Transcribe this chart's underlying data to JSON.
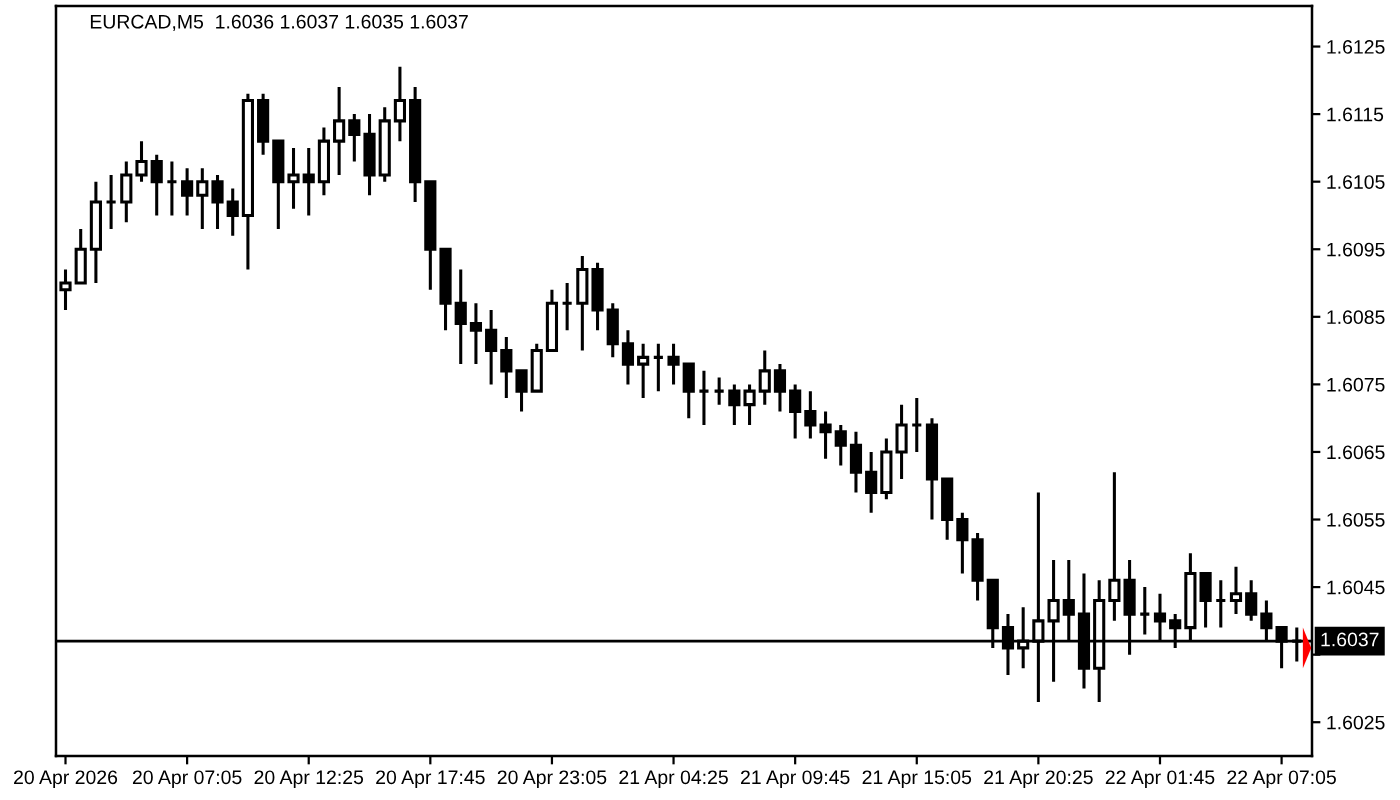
{
  "chart_data": {
    "type": "candlestick",
    "title": "EURCAD,M5  1.6036 1.6037 1.6035 1.6037",
    "color": "#000000",
    "x": [
      "2026-04-20T01:45",
      "2026-04-20T02:25",
      "2026-04-20T03:05",
      "2026-04-20T03:45",
      "2026-04-20T04:25",
      "2026-04-20T05:05",
      "2026-04-20T05:45",
      "2026-04-20T06:25",
      "2026-04-20T07:05",
      "2026-04-20T07:45",
      "2026-04-20T08:25",
      "2026-04-20T09:05",
      "2026-04-20T09:45",
      "2026-04-20T10:25",
      "2026-04-20T11:05",
      "2026-04-20T11:45",
      "2026-04-20T12:25",
      "2026-04-20T13:05",
      "2026-04-20T13:45",
      "2026-04-20T14:25",
      "2026-04-20T15:05",
      "2026-04-20T15:45",
      "2026-04-20T16:25",
      "2026-04-20T17:05",
      "2026-04-20T17:45",
      "2026-04-20T18:25",
      "2026-04-20T19:05",
      "2026-04-20T19:45",
      "2026-04-20T20:25",
      "2026-04-20T21:05",
      "2026-04-20T21:45",
      "2026-04-20T22:25",
      "2026-04-20T23:05",
      "2026-04-20T23:45",
      "2026-04-21T00:25",
      "2026-04-21T01:05",
      "2026-04-21T01:45",
      "2026-04-21T02:25",
      "2026-04-21T03:05",
      "2026-04-21T03:45",
      "2026-04-21T04:25",
      "2026-04-21T05:05",
      "2026-04-21T05:45",
      "2026-04-21T06:25",
      "2026-04-21T07:05",
      "2026-04-21T07:45",
      "2026-04-21T08:25",
      "2026-04-21T09:05",
      "2026-04-21T09:45",
      "2026-04-21T10:25",
      "2026-04-21T11:05",
      "2026-04-21T11:45",
      "2026-04-21T12:25",
      "2026-04-21T13:05",
      "2026-04-21T13:45",
      "2026-04-21T14:25",
      "2026-04-21T15:05",
      "2026-04-21T15:45",
      "2026-04-21T16:25",
      "2026-04-21T17:05",
      "2026-04-21T17:45",
      "2026-04-21T18:25",
      "2026-04-21T19:05",
      "2026-04-21T19:45",
      "2026-04-21T20:25",
      "2026-04-21T21:05",
      "2026-04-21T21:45",
      "2026-04-21T22:25",
      "2026-04-21T23:05",
      "2026-04-21T23:45",
      "2026-04-22T00:25",
      "2026-04-22T01:05",
      "2026-04-22T01:45",
      "2026-04-22T02:25",
      "2026-04-22T03:05",
      "2026-04-22T03:45",
      "2026-04-22T04:25",
      "2026-04-22T05:05",
      "2026-04-22T05:45",
      "2026-04-22T06:25",
      "2026-04-22T07:05",
      "2026-04-22T07:45"
    ],
    "ohlc": [
      [
        1.6089,
        1.6092,
        1.6086,
        1.609
      ],
      [
        1.609,
        1.6098,
        1.609,
        1.6095
      ],
      [
        1.6095,
        1.6105,
        1.609,
        1.6102
      ],
      [
        1.6102,
        1.6106,
        1.6098,
        1.6102
      ],
      [
        1.6102,
        1.6108,
        1.6099,
        1.6106
      ],
      [
        1.6106,
        1.6111,
        1.6105,
        1.6108
      ],
      [
        1.6108,
        1.6109,
        1.61,
        1.6105
      ],
      [
        1.6105,
        1.6108,
        1.61,
        1.6105
      ],
      [
        1.6105,
        1.6107,
        1.61,
        1.6103
      ],
      [
        1.6103,
        1.6107,
        1.6098,
        1.6105
      ],
      [
        1.6105,
        1.6106,
        1.6098,
        1.6102
      ],
      [
        1.6102,
        1.6104,
        1.6097,
        1.61
      ],
      [
        1.61,
        1.6118,
        1.6092,
        1.6117
      ],
      [
        1.6117,
        1.6118,
        1.6109,
        1.6111
      ],
      [
        1.6111,
        1.6111,
        1.6098,
        1.6105
      ],
      [
        1.6105,
        1.611,
        1.6101,
        1.6106
      ],
      [
        1.6106,
        1.611,
        1.61,
        1.6105
      ],
      [
        1.6105,
        1.6113,
        1.6103,
        1.6111
      ],
      [
        1.6111,
        1.6119,
        1.6106,
        1.6114
      ],
      [
        1.6114,
        1.6115,
        1.6108,
        1.6112
      ],
      [
        1.6112,
        1.6115,
        1.6103,
        1.6106
      ],
      [
        1.6106,
        1.6116,
        1.6105,
        1.6114
      ],
      [
        1.6114,
        1.6122,
        1.6111,
        1.6117
      ],
      [
        1.6117,
        1.6119,
        1.6102,
        1.6105
      ],
      [
        1.6105,
        1.6105,
        1.6089,
        1.6095
      ],
      [
        1.6095,
        1.6095,
        1.6083,
        1.6087
      ],
      [
        1.6087,
        1.6092,
        1.6078,
        1.6084
      ],
      [
        1.6084,
        1.6087,
        1.6078,
        1.6083
      ],
      [
        1.6083,
        1.6086,
        1.6075,
        1.608
      ],
      [
        1.608,
        1.6082,
        1.6073,
        1.6077
      ],
      [
        1.6077,
        1.6077,
        1.6071,
        1.6074
      ],
      [
        1.6074,
        1.6081,
        1.6074,
        1.608
      ],
      [
        1.608,
        1.6089,
        1.608,
        1.6087
      ],
      [
        1.6087,
        1.609,
        1.6083,
        1.6087
      ],
      [
        1.6087,
        1.6094,
        1.608,
        1.6092
      ],
      [
        1.6092,
        1.6093,
        1.6083,
        1.6086
      ],
      [
        1.6086,
        1.6087,
        1.6079,
        1.6081
      ],
      [
        1.6081,
        1.6083,
        1.6075,
        1.6078
      ],
      [
        1.6078,
        1.6081,
        1.6073,
        1.6079
      ],
      [
        1.6079,
        1.6081,
        1.6074,
        1.6079
      ],
      [
        1.6079,
        1.6081,
        1.6075,
        1.6078
      ],
      [
        1.6078,
        1.6078,
        1.607,
        1.6074
      ],
      [
        1.6074,
        1.6077,
        1.6069,
        1.6074
      ],
      [
        1.6074,
        1.6076,
        1.6072,
        1.6074
      ],
      [
        1.6074,
        1.6075,
        1.6069,
        1.6072
      ],
      [
        1.6072,
        1.6075,
        1.6069,
        1.6074
      ],
      [
        1.6074,
        1.608,
        1.6072,
        1.6077
      ],
      [
        1.6077,
        1.6078,
        1.6071,
        1.6074
      ],
      [
        1.6074,
        1.6075,
        1.6067,
        1.6071
      ],
      [
        1.6071,
        1.6074,
        1.6067,
        1.6069
      ],
      [
        1.6069,
        1.6071,
        1.6064,
        1.6068
      ],
      [
        1.6068,
        1.6069,
        1.6063,
        1.6066
      ],
      [
        1.6066,
        1.6068,
        1.6059,
        1.6062
      ],
      [
        1.6062,
        1.6065,
        1.6056,
        1.6059
      ],
      [
        1.6059,
        1.6067,
        1.6058,
        1.6065
      ],
      [
        1.6065,
        1.6072,
        1.6061,
        1.6069
      ],
      [
        1.6069,
        1.6073,
        1.6065,
        1.6069
      ],
      [
        1.6069,
        1.607,
        1.6055,
        1.6061
      ],
      [
        1.6061,
        1.6061,
        1.6052,
        1.6055
      ],
      [
        1.6055,
        1.6056,
        1.6047,
        1.6052
      ],
      [
        1.6052,
        1.6053,
        1.6043,
        1.6046
      ],
      [
        1.6046,
        1.6046,
        1.6036,
        1.6039
      ],
      [
        1.6039,
        1.6041,
        1.6032,
        1.6036
      ],
      [
        1.6036,
        1.6042,
        1.6033,
        1.6037
      ],
      [
        1.6037,
        1.6059,
        1.6028,
        1.604
      ],
      [
        1.604,
        1.6049,
        1.6031,
        1.6043
      ],
      [
        1.6043,
        1.6049,
        1.6037,
        1.6041
      ],
      [
        1.6041,
        1.6047,
        1.603,
        1.6033
      ],
      [
        1.6033,
        1.6046,
        1.6028,
        1.6043
      ],
      [
        1.6043,
        1.6062,
        1.604,
        1.6046
      ],
      [
        1.6046,
        1.6049,
        1.6035,
        1.6041
      ],
      [
        1.6041,
        1.6045,
        1.6038,
        1.6041
      ],
      [
        1.6041,
        1.6044,
        1.6037,
        1.604
      ],
      [
        1.604,
        1.6041,
        1.6036,
        1.6039
      ],
      [
        1.6039,
        1.605,
        1.6037,
        1.6047
      ],
      [
        1.6047,
        1.6047,
        1.6039,
        1.6043
      ],
      [
        1.6043,
        1.6046,
        1.6039,
        1.6043
      ],
      [
        1.6043,
        1.6048,
        1.6041,
        1.6044
      ],
      [
        1.6044,
        1.6046,
        1.604,
        1.6041
      ],
      [
        1.6041,
        1.6043,
        1.6037,
        1.6039
      ],
      [
        1.6039,
        1.6039,
        1.6033,
        1.6037
      ],
      [
        1.6037,
        1.6039,
        1.6034,
        1.6037
      ]
    ],
    "xlim": [
      "2026-04-20T01:20",
      "2026-04-22T08:25"
    ],
    "xticks": [
      {
        "value": "2026-04-20T01:45",
        "label": "20 Apr 2026"
      },
      {
        "value": "2026-04-20T07:05",
        "label": "20 Apr 07:05"
      },
      {
        "value": "2026-04-20T12:25",
        "label": "20 Apr 12:25"
      },
      {
        "value": "2026-04-20T17:45",
        "label": "20 Apr 17:45"
      },
      {
        "value": "2026-04-20T23:05",
        "label": "20 Apr 23:05"
      },
      {
        "value": "2026-04-21T04:25",
        "label": "21 Apr 04:25"
      },
      {
        "value": "2026-04-21T09:45",
        "label": "21 Apr 09:45"
      },
      {
        "value": "2026-04-21T15:05",
        "label": "21 Apr 15:05"
      },
      {
        "value": "2026-04-21T20:25",
        "label": "21 Apr 20:25"
      },
      {
        "value": "2026-04-22T01:45",
        "label": "22 Apr 01:45"
      },
      {
        "value": "2026-04-22T07:05",
        "label": "22 Apr 07:05"
      }
    ],
    "ylim": [
      1.602,
      1.6131
    ],
    "yticks": [
      1.6025,
      {
        "value": 1.6035,
        "label": null
      },
      1.6045,
      1.6055,
      1.6065,
      1.6075,
      1.6085,
      1.6095,
      1.6105,
      1.6115,
      1.6125
    ],
    "ref_lines": [
      {
        "axis": "y",
        "value": 1.6037,
        "label": "1.6037",
        "color": "#000000"
      }
    ]
  }
}
